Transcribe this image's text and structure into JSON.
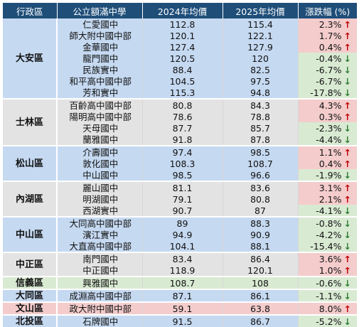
{
  "columns": [
    "行政區",
    "公立額滿中學",
    "2024年均價",
    "2025年均價",
    "漲跌幅 (%)"
  ],
  "colors": {
    "header_bg": "#1f4e79",
    "up_bg": "#f4cccc",
    "down_bg": "#d9ead3",
    "up_arrow": "#c00000",
    "down_arrow": "#2e7d32"
  },
  "groups": [
    {
      "district": "大安區",
      "bg": "#c5d9f1",
      "rows": [
        {
          "school": "仁愛國中",
          "y2024": "112.8",
          "y2025": "115.4",
          "change": "2.3%",
          "dir": "up"
        },
        {
          "school": "師大附中國中部",
          "y2024": "120.1",
          "y2025": "122.1",
          "change": "1.7%",
          "dir": "up"
        },
        {
          "school": "金華國中",
          "y2024": "127.4",
          "y2025": "127.9",
          "change": "0.4%",
          "dir": "up"
        },
        {
          "school": "龍門國中",
          "y2024": "120.5",
          "y2025": "120",
          "change": "-0.4%",
          "dir": "down"
        },
        {
          "school": "民族實中",
          "y2024": "88.4",
          "y2025": "82.5",
          "change": "-6.7%",
          "dir": "down"
        },
        {
          "school": "和平高中國中部",
          "y2024": "104.5",
          "y2025": "97.5",
          "change": "-6.7%",
          "dir": "down"
        },
        {
          "school": "芳和實中",
          "y2024": "115.3",
          "y2025": "94.8",
          "change": "-17.8%",
          "dir": "down"
        }
      ]
    },
    {
      "district": "士林區",
      "bg": "#e3e3e3",
      "rows": [
        {
          "school": "百齡高中國中部",
          "y2024": "80.8",
          "y2025": "84.3",
          "change": "4.3%",
          "dir": "up"
        },
        {
          "school": "陽明高中國中部",
          "y2024": "78.6",
          "y2025": "78.8",
          "change": "0.3%",
          "dir": "up"
        },
        {
          "school": "天母國中",
          "y2024": "87.7",
          "y2025": "85.7",
          "change": "-2.3%",
          "dir": "down"
        },
        {
          "school": "蘭雅國中",
          "y2024": "91.8",
          "y2025": "87.8",
          "change": "-4.4%",
          "dir": "down"
        }
      ]
    },
    {
      "district": "松山區",
      "bg": "#c5d9f1",
      "rows": [
        {
          "school": "介壽國中",
          "y2024": "97.4",
          "y2025": "98.5",
          "change": "1.1%",
          "dir": "up"
        },
        {
          "school": "敦化國中",
          "y2024": "108.3",
          "y2025": "108.7",
          "change": "0.4%",
          "dir": "up"
        },
        {
          "school": "中山國中",
          "y2024": "98.5",
          "y2025": "96.6",
          "change": "-1.9%",
          "dir": "down"
        }
      ]
    },
    {
      "district": "內湖區",
      "bg": "#e3e3e3",
      "rows": [
        {
          "school": "麗山國中",
          "y2024": "81.1",
          "y2025": "83.6",
          "change": "3.1%",
          "dir": "up"
        },
        {
          "school": "明湖國中",
          "y2024": "79.1",
          "y2025": "80.8",
          "change": "2.1%",
          "dir": "up"
        },
        {
          "school": "西湖實中",
          "y2024": "90.7",
          "y2025": "87",
          "change": "-4.1%",
          "dir": "down"
        }
      ]
    },
    {
      "district": "中山區",
      "bg": "#c5d9f1",
      "rows": [
        {
          "school": "大同高中國中部",
          "y2024": "89",
          "y2025": "88.3",
          "change": "-0.8%",
          "dir": "down"
        },
        {
          "school": "濱江實中",
          "y2024": "94.9",
          "y2025": "90.9",
          "change": "-4.2%",
          "dir": "down"
        },
        {
          "school": "大直高中國中部",
          "y2024": "104.1",
          "y2025": "88.1",
          "change": "-15.4%",
          "dir": "down"
        }
      ]
    },
    {
      "district": "中正區",
      "bg": "#e3e3e3",
      "rows": [
        {
          "school": "南門國中",
          "y2024": "83.4",
          "y2025": "86.4",
          "change": "3.6%",
          "dir": "up"
        },
        {
          "school": "中正國中",
          "y2024": "118.9",
          "y2025": "120.1",
          "change": "1.0%",
          "dir": "up"
        }
      ]
    },
    {
      "district": "信義區",
      "bg": "#d9ead3",
      "rows": [
        {
          "school": "興雅國中",
          "y2024": "108.7",
          "y2025": "108",
          "change": "-0.6%",
          "dir": "down"
        }
      ]
    },
    {
      "district": "大同區",
      "bg": "#c5d9f1",
      "rows": [
        {
          "school": "成淵高中國中部",
          "y2024": "87.1",
          "y2025": "86.1",
          "change": "-1.1%",
          "dir": "down"
        }
      ]
    },
    {
      "district": "文山區",
      "bg": "#f4cccc",
      "rows": [
        {
          "school": "政大附中國中部",
          "y2024": "59.1",
          "y2025": "63.8",
          "change": "8.0%",
          "dir": "up"
        }
      ]
    },
    {
      "district": "北投區",
      "bg": "#c5d9f1",
      "rows": [
        {
          "school": "石牌國中",
          "y2024": "91.5",
          "y2025": "86.7",
          "change": "-5.2%",
          "dir": "down"
        }
      ]
    }
  ]
}
